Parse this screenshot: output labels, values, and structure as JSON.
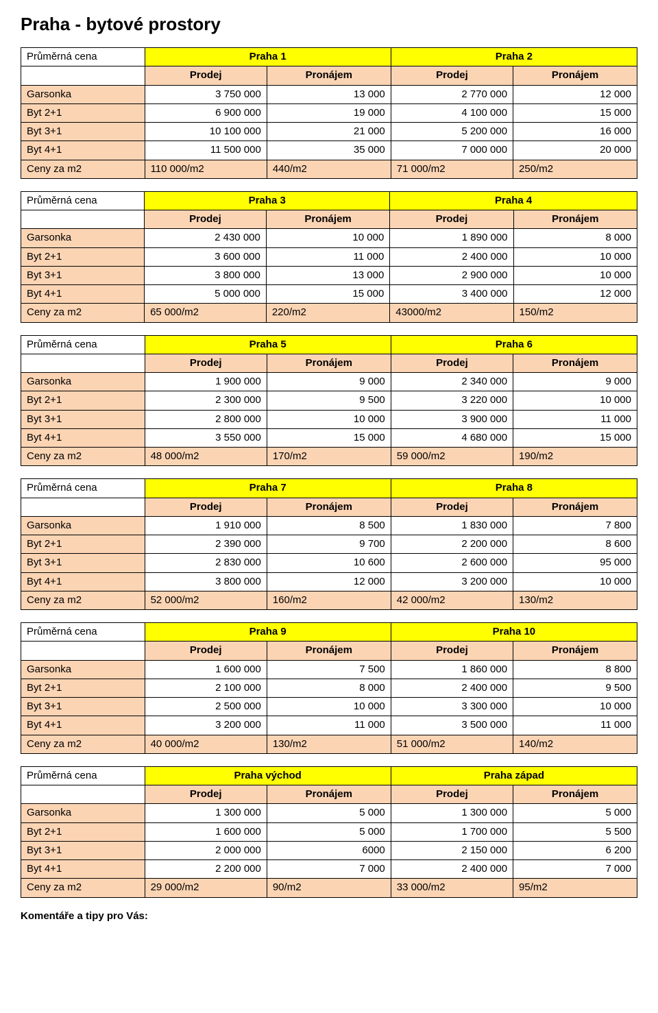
{
  "page": {
    "title": "Praha - bytové prostory",
    "avg_price_label": "Průměrná cena",
    "subheaders": [
      "Prodej",
      "Pronájem",
      "Prodej",
      "Pronájem"
    ],
    "row_labels": [
      "Garsonka",
      "Byt 2+1",
      "Byt 3+1",
      "Byt 4+1"
    ],
    "summary_label": "Ceny za m2",
    "comments_label": "Komentáře a tipy pro Vás:"
  },
  "colors": {
    "header_bg": "#ffff00",
    "tan_bg": "#fbd4b4",
    "white_bg": "#ffffff",
    "border": "#000000",
    "text": "#000000"
  },
  "tables": [
    {
      "regions": [
        "Praha 1",
        "Praha 2"
      ],
      "rows": [
        [
          "3 750 000",
          "13 000",
          "2 770 000",
          "12 000"
        ],
        [
          "6 900 000",
          "19 000",
          "4 100 000",
          "15 000"
        ],
        [
          "10 100 000",
          "21 000",
          "5 200 000",
          "16 000"
        ],
        [
          "11 500 000",
          "35 000",
          "7 000 000",
          "20 000"
        ]
      ],
      "summary": [
        "110 000/m2",
        "440/m2",
        "71 000/m2",
        "250/m2"
      ]
    },
    {
      "regions": [
        "Praha 3",
        "Praha 4"
      ],
      "rows": [
        [
          "2 430 000",
          "10 000",
          "1 890 000",
          "8 000"
        ],
        [
          "3 600 000",
          "11 000",
          "2 400 000",
          "10 000"
        ],
        [
          "3 800 000",
          "13 000",
          "2 900 000",
          "10 000"
        ],
        [
          "5 000 000",
          "15 000",
          "3 400 000",
          "12 000"
        ]
      ],
      "summary": [
        "65 000/m2",
        "220/m2",
        "43000/m2",
        "150/m2"
      ]
    },
    {
      "regions": [
        "Praha 5",
        "Praha 6"
      ],
      "rows": [
        [
          "1 900 000",
          "9 000",
          "2 340 000",
          "9 000"
        ],
        [
          "2 300 000",
          "9 500",
          "3 220 000",
          "10 000"
        ],
        [
          "2 800 000",
          "10 000",
          "3 900 000",
          "11 000"
        ],
        [
          "3 550 000",
          "15 000",
          "4 680 000",
          "15 000"
        ]
      ],
      "summary": [
        "48 000/m2",
        "170/m2",
        "59 000/m2",
        "190/m2"
      ]
    },
    {
      "regions": [
        "Praha 7",
        "Praha 8"
      ],
      "rows": [
        [
          "1 910 000",
          "8 500",
          "1 830 000",
          "7 800"
        ],
        [
          "2 390 000",
          "9 700",
          "2 200 000",
          "8 600"
        ],
        [
          "2 830 000",
          "10 600",
          "2 600 000",
          "95 000"
        ],
        [
          "3 800 000",
          "12 000",
          "3 200 000",
          "10 000"
        ]
      ],
      "summary": [
        "52 000/m2",
        "160/m2",
        "42 000/m2",
        "130/m2"
      ]
    },
    {
      "regions": [
        "Praha 9",
        "Praha 10"
      ],
      "rows": [
        [
          "1 600 000",
          "7 500",
          "1 860 000",
          "8 800"
        ],
        [
          "2 100 000",
          "8 000",
          "2 400 000",
          "9 500"
        ],
        [
          "2 500 000",
          "10 000",
          "3 300 000",
          "10 000"
        ],
        [
          "3 200 000",
          "11 000",
          "3 500 000",
          "11 000"
        ]
      ],
      "summary": [
        "40 000/m2",
        "130/m2",
        "51 000/m2",
        "140/m2"
      ]
    },
    {
      "regions": [
        "Praha východ",
        "Praha západ"
      ],
      "rows": [
        [
          "1 300 000",
          "5 000",
          "1 300 000",
          "5 000"
        ],
        [
          "1 600 000",
          "5 000",
          "1 700 000",
          "5 500"
        ],
        [
          "2 000 000",
          "6000",
          "2 150 000",
          "6 200"
        ],
        [
          "2 200 000",
          "7 000",
          "2 400 000",
          "7 000"
        ]
      ],
      "summary": [
        "29 000/m2",
        "90/m2",
        "33 000/m2",
        "95/m2"
      ]
    }
  ]
}
